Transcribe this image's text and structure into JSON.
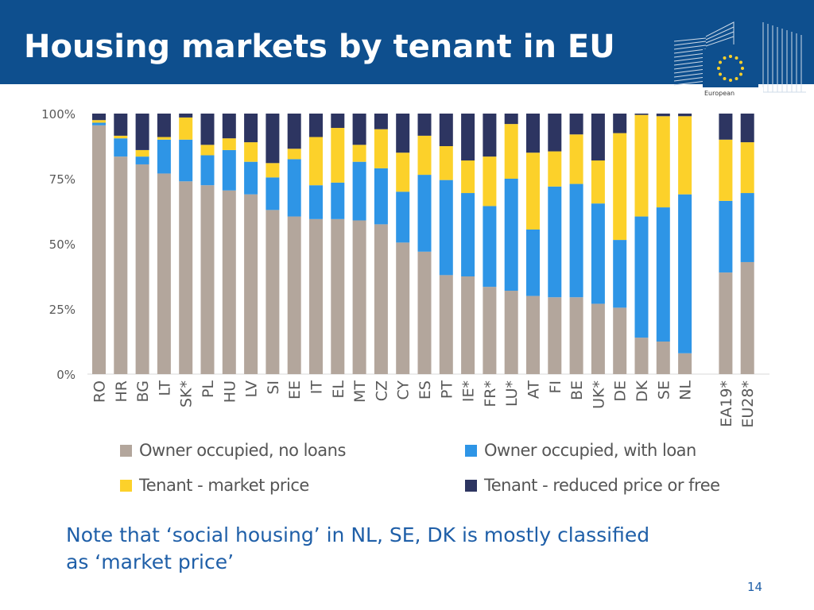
{
  "slide": {
    "title": "Housing markets by tenant in EU",
    "note": "Note that ‘social housing’ in NL, SE, DK is mostly classified as ‘market price’",
    "page_number": "14",
    "logo_text": "European"
  },
  "colors": {
    "header_bg": "#0e4f8e",
    "owner_no_loan": "#b3a69c",
    "owner_with_loan": "#2e95e6",
    "tenant_market": "#fcd12a",
    "tenant_reduced": "#2d3561",
    "note_text": "#1f5fa8"
  },
  "chart_data": {
    "type": "bar",
    "stacked": true,
    "categories": [
      "RO",
      "HR",
      "BG",
      "LT",
      "SK*",
      "PL",
      "HU",
      "LV",
      "SI",
      "EE",
      "IT",
      "EL",
      "MT",
      "CZ",
      "CY",
      "ES",
      "PT",
      "IE*",
      "FR*",
      "LU*",
      "AT",
      "FI",
      "BE",
      "UK*",
      "DE",
      "DK",
      "SE",
      "NL",
      "EA19*",
      "EU28*"
    ],
    "series": [
      {
        "name": "Owner occupied, no loans",
        "color": "#b3a69c",
        "values": [
          95.5,
          83.5,
          80.5,
          77,
          74,
          72.5,
          70.5,
          69,
          63,
          60.5,
          59.5,
          59.5,
          59,
          57.5,
          50.5,
          47,
          38,
          37.5,
          33.5,
          32,
          30,
          29.5,
          29.5,
          27,
          25.5,
          14,
          12.5,
          8,
          39,
          43
        ]
      },
      {
        "name": "Owner occupied, with loan",
        "color": "#2e95e6",
        "values": [
          1,
          7,
          3,
          13,
          16,
          11.5,
          15.5,
          12.5,
          12.5,
          22,
          13,
          14,
          22.5,
          21.5,
          19.5,
          29.5,
          36.5,
          32,
          31,
          43,
          25.5,
          42.5,
          43.5,
          38.5,
          26,
          46.5,
          51.5,
          61,
          27.5,
          26.5
        ]
      },
      {
        "name": "Tenant - market price",
        "color": "#fcd12a",
        "values": [
          1,
          1,
          2.5,
          1,
          8.5,
          4,
          4.5,
          7.5,
          5.5,
          4,
          18.5,
          21,
          6.5,
          15,
          15,
          15,
          13,
          12.5,
          19,
          21,
          29.5,
          13.5,
          19,
          16.5,
          41,
          39,
          35,
          30,
          23.5,
          19.5
        ]
      },
      {
        "name": "Tenant - reduced price or free",
        "color": "#2d3561",
        "values": [
          2.5,
          8.5,
          14,
          9,
          1.5,
          12,
          9.5,
          11,
          19,
          13.5,
          9,
          5.5,
          12,
          6,
          15,
          8.5,
          12.5,
          18,
          16.5,
          4,
          15,
          14.5,
          8,
          18,
          7.5,
          0.5,
          1,
          1,
          10,
          11
        ]
      }
    ],
    "ylim": [
      0,
      100
    ],
    "yticks": [
      "0%",
      "25%",
      "50%",
      "75%",
      "100%"
    ],
    "grid": false,
    "legend_position": "bottom"
  }
}
